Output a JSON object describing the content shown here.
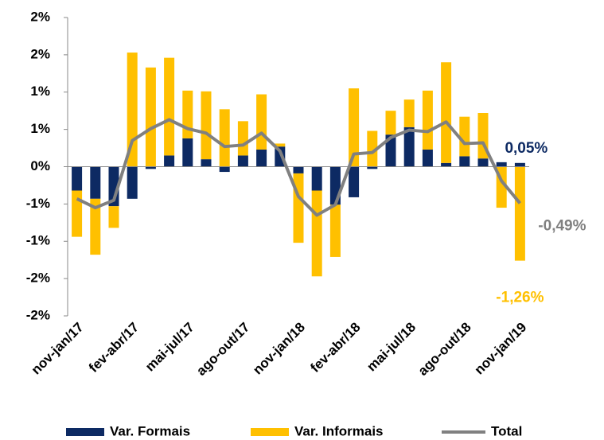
{
  "chart_data": {
    "type": "bar",
    "stacked": true,
    "categories": [
      "nov-jan/17",
      null,
      null,
      "fev-abr/17",
      null,
      null,
      "mai-jul/17",
      null,
      null,
      "ago-out/17",
      null,
      null,
      "nov-jan/18",
      null,
      null,
      "fev-abr/18",
      null,
      null,
      "mai-jul/18",
      null,
      null,
      "ago-out/18",
      null,
      null,
      "nov-jan/19"
    ],
    "series": [
      {
        "name": "Var. Formais",
        "type": "bar",
        "color": "#0d2a63",
        "values": [
          -0.32,
          -0.43,
          -0.53,
          -0.43,
          -0.03,
          0.15,
          0.38,
          0.1,
          -0.07,
          0.15,
          0.23,
          0.27,
          -0.09,
          -0.32,
          -0.51,
          -0.41,
          -0.03,
          0.43,
          0.53,
          0.23,
          0.05,
          0.14,
          0.11,
          0.06,
          0.05
        ],
        "value_labels": [
          null,
          null,
          null,
          null,
          null,
          null,
          null,
          null,
          null,
          null,
          null,
          null,
          null,
          null,
          null,
          null,
          null,
          null,
          null,
          null,
          null,
          null,
          null,
          null,
          "0,05%"
        ]
      },
      {
        "name": "Var. Informais",
        "type": "bar",
        "color": "#ffc000",
        "values": [
          -0.62,
          -0.75,
          -0.29,
          1.53,
          1.33,
          1.31,
          0.64,
          0.91,
          0.77,
          0.46,
          0.74,
          0.04,
          -0.93,
          -1.15,
          -0.7,
          1.05,
          0.48,
          0.32,
          0.37,
          0.79,
          1.35,
          0.53,
          0.61,
          -0.55,
          -1.26
        ],
        "value_labels": [
          null,
          null,
          null,
          null,
          null,
          null,
          null,
          null,
          null,
          null,
          null,
          null,
          null,
          null,
          null,
          null,
          null,
          null,
          null,
          null,
          null,
          null,
          null,
          null,
          "-1,26%"
        ]
      },
      {
        "name": "Total",
        "type": "line",
        "color": "#808080",
        "values": [
          -0.43,
          -0.55,
          -0.45,
          0.35,
          0.51,
          0.63,
          0.51,
          0.45,
          0.27,
          0.29,
          0.45,
          0.21,
          -0.4,
          -0.65,
          -0.51,
          0.17,
          0.19,
          0.39,
          0.49,
          0.47,
          0.6,
          0.31,
          0.32,
          -0.19,
          -0.49
        ],
        "value_labels": [
          null,
          null,
          null,
          null,
          null,
          null,
          null,
          null,
          null,
          null,
          null,
          null,
          null,
          null,
          null,
          null,
          null,
          null,
          null,
          null,
          null,
          null,
          null,
          null,
          "-0,49%"
        ]
      }
    ],
    "ylim": [
      -2,
      2
    ],
    "yticks": [
      {
        "value": -2,
        "label": "-2%"
      },
      {
        "value": -1.5,
        "label": "-2%"
      },
      {
        "value": -1,
        "label": "-1%"
      },
      {
        "value": -0.5,
        "label": "-1%"
      },
      {
        "value": 0,
        "label": "0%"
      },
      {
        "value": 0.5,
        "label": "1%"
      },
      {
        "value": 1,
        "label": "1%"
      },
      {
        "value": 1.5,
        "label": "2%"
      },
      {
        "value": 2,
        "label": "2%"
      }
    ],
    "grid": false,
    "legend": "bottom"
  }
}
